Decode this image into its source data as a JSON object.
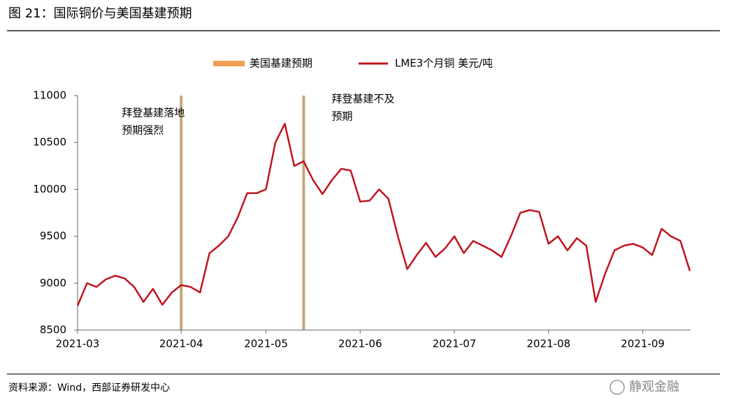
{
  "header": {
    "title": "图 21：国际铜价与美国基建预期"
  },
  "chart_data": {
    "type": "line",
    "categories": [
      "2021-03",
      null,
      null,
      null,
      null,
      null,
      null,
      null,
      null,
      null,
      null,
      "2021-04",
      null,
      null,
      null,
      null,
      null,
      null,
      null,
      null,
      "2021-05",
      null,
      null,
      null,
      null,
      null,
      null,
      null,
      null,
      null,
      "2021-06",
      null,
      null,
      null,
      null,
      null,
      null,
      null,
      null,
      null,
      "2021-07",
      null,
      null,
      null,
      null,
      null,
      null,
      null,
      null,
      null,
      "2021-08",
      null,
      null,
      null,
      null,
      null,
      null,
      null,
      null,
      null,
      "2021-09",
      null,
      null,
      null,
      null,
      null
    ],
    "series": [
      {
        "name": "美国基建预期",
        "type": "bar",
        "color": "#f0a050",
        "bar_color": "#c4a77d",
        "values": [
          null,
          null,
          null,
          null,
          null,
          null,
          null,
          null,
          null,
          null,
          null,
          11000,
          null,
          null,
          null,
          null,
          null,
          null,
          null,
          null,
          null,
          null,
          null,
          null,
          11000,
          null,
          null,
          null,
          null,
          null,
          null,
          null,
          null,
          null,
          null,
          null,
          null,
          null,
          null,
          null,
          null,
          null,
          null,
          null,
          null,
          null,
          null,
          null,
          null,
          null,
          null,
          null,
          null,
          null,
          null,
          null,
          null,
          null,
          null,
          null,
          null,
          null,
          null,
          null,
          null,
          null
        ]
      },
      {
        "name": "LME3个月铜 美元/吨",
        "type": "line",
        "color": "#c0141e",
        "values": [
          8760,
          9000,
          8960,
          9040,
          9080,
          9050,
          8960,
          8800,
          8940,
          8770,
          8900,
          8980,
          8960,
          8900,
          9320,
          9400,
          9500,
          9700,
          9960,
          9960,
          10000,
          10500,
          10700,
          10250,
          10300,
          10100,
          9950,
          10100,
          10220,
          10200,
          9870,
          9880,
          10000,
          9900,
          9500,
          9150,
          9300,
          9430,
          9280,
          9370,
          9500,
          9320,
          9450,
          9400,
          9350,
          9280,
          9500,
          9750,
          9780,
          9760,
          9420,
          9500,
          9350,
          9480,
          9400,
          8800,
          9100,
          9350,
          9400,
          9420,
          9380,
          9300,
          9580,
          9500,
          9450,
          9130
        ]
      }
    ],
    "ylim": [
      8500,
      11000
    ],
    "yticks": [
      8500,
      9000,
      9500,
      10000,
      10500,
      11000
    ],
    "legend": "top",
    "annotations": [
      {
        "lines": [
          "拜登基建落地",
          "预期强烈"
        ],
        "index": 11
      },
      {
        "lines": [
          "拜登基建不及",
          "预期"
        ],
        "index": 24
      }
    ]
  },
  "footer": {
    "source": "资料来源：Wind，西部证券研发中心",
    "watermark": "静观金融"
  }
}
